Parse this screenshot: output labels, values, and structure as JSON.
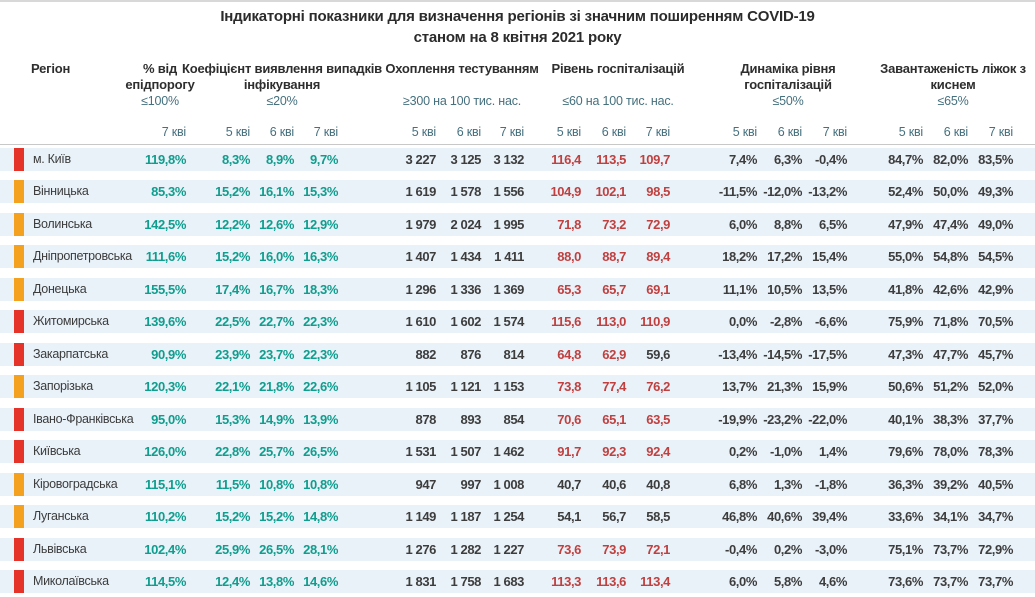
{
  "title": {
    "line1": "Індикаторні показники для визначення регіонів зі значним поширенням COVID-19",
    "line2": "станом на 8 квітня 2021 року"
  },
  "colors": {
    "marker_red": "#e6332a",
    "marker_orange": "#f3a11f",
    "value_green": "#0f9d8d",
    "value_red": "#c0403f",
    "value_dark": "#3d3d3d",
    "row_bg": "#e9f2f9"
  },
  "table": {
    "region_header": "Регіон",
    "groups": [
      {
        "title": "% від епідпорогу",
        "threshold": "≤100%",
        "dates": [
          "7 кві"
        ]
      },
      {
        "title": "Коефіцієнт виявлення випадків інфікування",
        "threshold": "≤20%",
        "dates": [
          "5 кві",
          "6 кві",
          "7 кві"
        ]
      },
      {
        "title": "Охоплення тестуванням",
        "threshold": "≥300 на 100 тис. нас.",
        "dates": [
          "5 кві",
          "6 кві",
          "7 кві"
        ]
      },
      {
        "title": "Рівень госпіталізацій",
        "threshold": "≤60 на 100 тис. нас.",
        "dates": [
          "5 кві",
          "6 кві",
          "7 кві"
        ]
      },
      {
        "title": "Динаміка рівня госпіталізацій",
        "threshold": "≤50%",
        "dates": [
          "5 кві",
          "6 кві",
          "7 кві"
        ]
      },
      {
        "title": "Завантаженість ліжок з киснем",
        "threshold": "≤65%",
        "dates": [
          "5 кві",
          "6 кві",
          "7 кві"
        ]
      }
    ],
    "rows": [
      {
        "name": "м. Київ",
        "marker": "red",
        "epid": "119,8%",
        "coef": [
          "8,3%",
          "8,9%",
          "9,7%"
        ],
        "test": [
          "3 227",
          "3 125",
          "3 132"
        ],
        "hosp": [
          "116,4",
          "113,5",
          "109,7"
        ],
        "hosp_alert": [
          true,
          true,
          true
        ],
        "dyn": [
          "7,4%",
          "6,3%",
          "-0,4%"
        ],
        "beds": [
          "84,7%",
          "82,0%",
          "83,5%"
        ]
      },
      {
        "name": "Вінницька",
        "marker": "orange",
        "epid": "85,3%",
        "coef": [
          "15,2%",
          "16,1%",
          "15,3%"
        ],
        "test": [
          "1 619",
          "1 578",
          "1 556"
        ],
        "hosp": [
          "104,9",
          "102,1",
          "98,5"
        ],
        "hosp_alert": [
          true,
          true,
          true
        ],
        "dyn": [
          "-11,5%",
          "-12,0%",
          "-13,2%"
        ],
        "beds": [
          "52,4%",
          "50,0%",
          "49,3%"
        ]
      },
      {
        "name": "Волинська",
        "marker": "orange",
        "epid": "142,5%",
        "coef": [
          "12,2%",
          "12,6%",
          "12,9%"
        ],
        "test": [
          "1 979",
          "2 024",
          "1 995"
        ],
        "hosp": [
          "71,8",
          "73,2",
          "72,9"
        ],
        "hosp_alert": [
          true,
          true,
          true
        ],
        "dyn": [
          "6,0%",
          "8,8%",
          "6,5%"
        ],
        "beds": [
          "47,9%",
          "47,4%",
          "49,0%"
        ]
      },
      {
        "name": "Дніпропетровська",
        "marker": "orange",
        "epid": "111,6%",
        "coef": [
          "15,2%",
          "16,0%",
          "16,3%"
        ],
        "test": [
          "1 407",
          "1 434",
          "1 411"
        ],
        "hosp": [
          "88,0",
          "88,7",
          "89,4"
        ],
        "hosp_alert": [
          true,
          true,
          true
        ],
        "dyn": [
          "18,2%",
          "17,2%",
          "15,4%"
        ],
        "beds": [
          "55,0%",
          "54,8%",
          "54,5%"
        ]
      },
      {
        "name": "Донецька",
        "marker": "orange",
        "epid": "155,5%",
        "coef": [
          "17,4%",
          "16,7%",
          "18,3%"
        ],
        "test": [
          "1 296",
          "1 336",
          "1 369"
        ],
        "hosp": [
          "65,3",
          "65,7",
          "69,1"
        ],
        "hosp_alert": [
          true,
          true,
          true
        ],
        "dyn": [
          "11,1%",
          "10,5%",
          "13,5%"
        ],
        "beds": [
          "41,8%",
          "42,6%",
          "42,9%"
        ]
      },
      {
        "name": "Житомирська",
        "marker": "red",
        "epid": "139,6%",
        "coef": [
          "22,5%",
          "22,7%",
          "22,3%"
        ],
        "test": [
          "1 610",
          "1 602",
          "1 574"
        ],
        "hosp": [
          "115,6",
          "113,0",
          "110,9"
        ],
        "hosp_alert": [
          true,
          true,
          true
        ],
        "dyn": [
          "0,0%",
          "-2,8%",
          "-6,6%"
        ],
        "beds": [
          "75,9%",
          "71,8%",
          "70,5%"
        ]
      },
      {
        "name": "Закарпатська",
        "marker": "red",
        "epid": "90,9%",
        "coef": [
          "23,9%",
          "23,7%",
          "22,3%"
        ],
        "test": [
          "882",
          "876",
          "814"
        ],
        "hosp": [
          "64,8",
          "62,9",
          "59,6"
        ],
        "hosp_alert": [
          true,
          true,
          false
        ],
        "dyn": [
          "-13,4%",
          "-14,5%",
          "-17,5%"
        ],
        "beds": [
          "47,3%",
          "47,7%",
          "45,7%"
        ]
      },
      {
        "name": "Запорізька",
        "marker": "orange",
        "epid": "120,3%",
        "coef": [
          "22,1%",
          "21,8%",
          "22,6%"
        ],
        "test": [
          "1 105",
          "1 121",
          "1 153"
        ],
        "hosp": [
          "73,8",
          "77,4",
          "76,2"
        ],
        "hosp_alert": [
          true,
          true,
          true
        ],
        "dyn": [
          "13,7%",
          "21,3%",
          "15,9%"
        ],
        "beds": [
          "50,6%",
          "51,2%",
          "52,0%"
        ]
      },
      {
        "name": "Івано-Франківська",
        "marker": "red",
        "epid": "95,0%",
        "coef": [
          "15,3%",
          "14,9%",
          "13,9%"
        ],
        "test": [
          "878",
          "893",
          "854"
        ],
        "hosp": [
          "70,6",
          "65,1",
          "63,5"
        ],
        "hosp_alert": [
          true,
          true,
          true
        ],
        "dyn": [
          "-19,9%",
          "-23,2%",
          "-22,0%"
        ],
        "beds": [
          "40,1%",
          "38,3%",
          "37,7%"
        ]
      },
      {
        "name": "Київська",
        "marker": "red",
        "epid": "126,0%",
        "coef": [
          "22,8%",
          "25,7%",
          "26,5%"
        ],
        "test": [
          "1 531",
          "1 507",
          "1 462"
        ],
        "hosp": [
          "91,7",
          "92,3",
          "92,4"
        ],
        "hosp_alert": [
          true,
          true,
          true
        ],
        "dyn": [
          "0,2%",
          "-1,0%",
          "1,4%"
        ],
        "beds": [
          "79,6%",
          "78,0%",
          "78,3%"
        ]
      },
      {
        "name": "Кіровоградська",
        "marker": "orange",
        "epid": "115,1%",
        "coef": [
          "11,5%",
          "10,8%",
          "10,8%"
        ],
        "test": [
          "947",
          "997",
          "1 008"
        ],
        "hosp": [
          "40,7",
          "40,6",
          "40,8"
        ],
        "hosp_alert": [
          false,
          false,
          false
        ],
        "dyn": [
          "6,8%",
          "1,3%",
          "-1,8%"
        ],
        "beds": [
          "36,3%",
          "39,2%",
          "40,5%"
        ]
      },
      {
        "name": "Луганська",
        "marker": "orange",
        "epid": "110,2%",
        "coef": [
          "15,2%",
          "15,2%",
          "14,8%"
        ],
        "test": [
          "1 149",
          "1 187",
          "1 254"
        ],
        "hosp": [
          "54,1",
          "56,7",
          "58,5"
        ],
        "hosp_alert": [
          false,
          false,
          false
        ],
        "dyn": [
          "46,8%",
          "40,6%",
          "39,4%"
        ],
        "beds": [
          "33,6%",
          "34,1%",
          "34,7%"
        ]
      },
      {
        "name": "Львівська",
        "marker": "red",
        "epid": "102,4%",
        "coef": [
          "25,9%",
          "26,5%",
          "28,1%"
        ],
        "test": [
          "1 276",
          "1 282",
          "1 227"
        ],
        "hosp": [
          "73,6",
          "73,9",
          "72,1"
        ],
        "hosp_alert": [
          true,
          true,
          true
        ],
        "dyn": [
          "-0,4%",
          "0,2%",
          "-3,0%"
        ],
        "beds": [
          "75,1%",
          "73,7%",
          "72,9%"
        ]
      },
      {
        "name": "Миколаївська",
        "marker": "red",
        "epid": "114,5%",
        "coef": [
          "12,4%",
          "13,8%",
          "14,6%"
        ],
        "test": [
          "1 831",
          "1 758",
          "1 683"
        ],
        "hosp": [
          "113,3",
          "113,6",
          "113,4"
        ],
        "hosp_alert": [
          true,
          true,
          true
        ],
        "dyn": [
          "6,0%",
          "5,8%",
          "4,6%"
        ],
        "beds": [
          "73,6%",
          "73,7%",
          "73,7%"
        ]
      }
    ]
  }
}
